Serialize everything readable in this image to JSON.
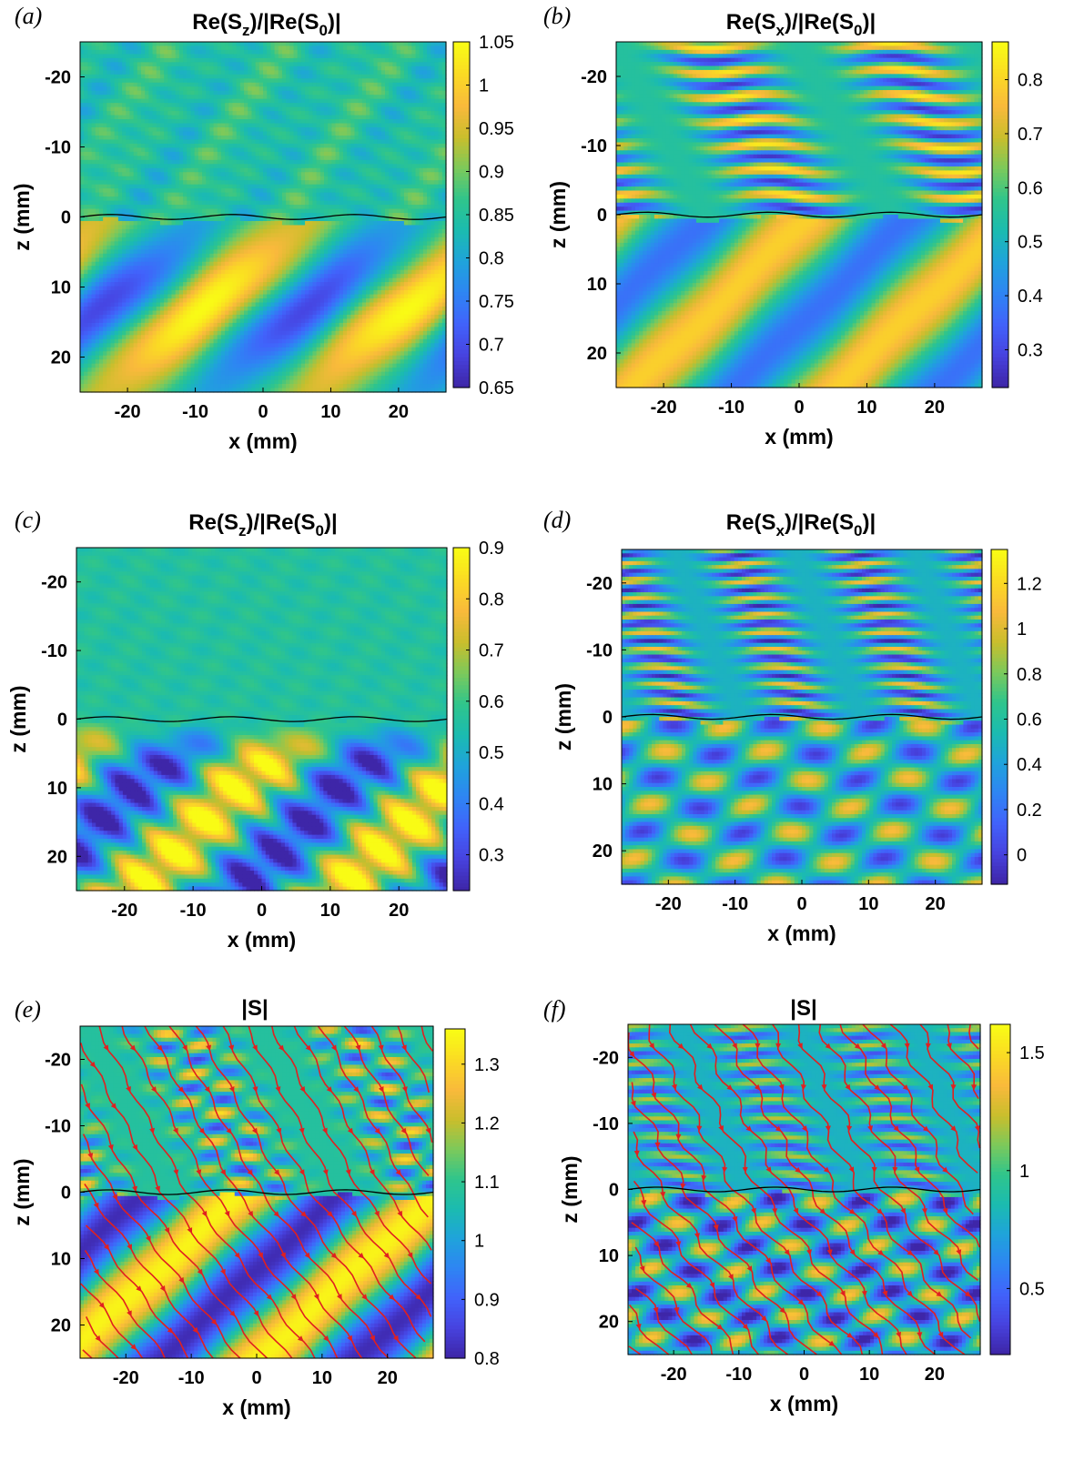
{
  "colormap": [
    "#3e26a8",
    "#4743e0",
    "#4163fb",
    "#2e85f3",
    "#1fa3db",
    "#1bbbb0",
    "#2fc58c",
    "#7cc95b",
    "#c9be2c",
    "#f9b93c",
    "#fada24",
    "#f9fb15"
  ],
  "streamline_color": "#e02020",
  "interface_color": "#000000",
  "chart_data": [
    {
      "panel": "(a)",
      "type": "heatmap",
      "title": "Re(S",
      "title_sub": "z",
      "title_tail": ")/|Re(S",
      "title_sub2": "0",
      "title_end": ")|",
      "xlabel": "x (mm)",
      "ylabel": "z (mm)",
      "xlim": [
        -27,
        27
      ],
      "ylim": [
        -25,
        25
      ],
      "xticks": [
        -20,
        -10,
        0,
        10,
        20
      ],
      "xtick_labels": [
        "-20",
        "-10",
        "0",
        "10",
        "20"
      ],
      "yticks": [
        -20,
        -10,
        0,
        10,
        20
      ],
      "ytick_labels": [
        "-20",
        "-10",
        "0",
        "10",
        "20"
      ],
      "clim": [
        0.65,
        1.05
      ],
      "cbar_ticks": [
        0.65,
        0.7,
        0.75,
        0.8,
        0.85,
        0.9,
        0.95,
        1,
        1.05
      ],
      "cbar_tick_labels": [
        "0.65",
        "0.7",
        "0.75",
        "0.8",
        "0.85",
        "0.9",
        "0.95",
        "1",
        "1.05"
      ]
    },
    {
      "panel": "(b)",
      "type": "heatmap",
      "title": "Re(S",
      "title_sub": "x",
      "title_tail": ")/|Re(S",
      "title_sub2": "0",
      "title_end": ")|",
      "xlabel": "x (mm)",
      "ylabel": "z (mm)",
      "xlim": [
        -27,
        27
      ],
      "ylim": [
        -25,
        25
      ],
      "xticks": [
        -20,
        -10,
        0,
        10,
        20
      ],
      "xtick_labels": [
        "-20",
        "-10",
        "0",
        "10",
        "20"
      ],
      "yticks": [
        -20,
        -10,
        0,
        10,
        20
      ],
      "ytick_labels": [
        "-20",
        "-10",
        "0",
        "10",
        "20"
      ],
      "clim": [
        0.23,
        0.87
      ],
      "cbar_ticks": [
        0.3,
        0.4,
        0.5,
        0.6,
        0.7,
        0.8
      ],
      "cbar_tick_labels": [
        "0.3",
        "0.4",
        "0.5",
        "0.6",
        "0.7",
        "0.8"
      ]
    },
    {
      "panel": "(c)",
      "type": "heatmap",
      "title": "Re(S",
      "title_sub": "z",
      "title_tail": ")/|Re(S",
      "title_sub2": "0",
      "title_end": ")|",
      "xlabel": "x (mm)",
      "ylabel": "z (mm)",
      "xlim": [
        -27,
        27
      ],
      "ylim": [
        -25,
        25
      ],
      "xticks": [
        -20,
        -10,
        0,
        10,
        20
      ],
      "xtick_labels": [
        "-20",
        "-10",
        "0",
        "10",
        "20"
      ],
      "yticks": [
        -20,
        -10,
        0,
        10,
        20
      ],
      "ytick_labels": [
        "-20",
        "-10",
        "0",
        "10",
        "20"
      ],
      "clim": [
        0.23,
        0.9
      ],
      "cbar_ticks": [
        0.3,
        0.4,
        0.5,
        0.6,
        0.7,
        0.8,
        0.9
      ],
      "cbar_tick_labels": [
        "0.3",
        "0.4",
        "0.5",
        "0.6",
        "0.7",
        "0.8",
        "0.9"
      ]
    },
    {
      "panel": "(d)",
      "type": "heatmap",
      "title": "Re(S",
      "title_sub": "x",
      "title_tail": ")/|Re(S",
      "title_sub2": "0",
      "title_end": ")|",
      "xlabel": "x (mm)",
      "ylabel": "z (mm)",
      "xlim": [
        -27,
        27
      ],
      "ylim": [
        -25,
        25
      ],
      "xticks": [
        -20,
        -10,
        0,
        10,
        20
      ],
      "xtick_labels": [
        "-20",
        "-10",
        "0",
        "10",
        "20"
      ],
      "yticks": [
        -20,
        -10,
        0,
        10,
        20
      ],
      "ytick_labels": [
        "-20",
        "-10",
        "0",
        "10",
        "20"
      ],
      "clim": [
        -0.13,
        1.35
      ],
      "cbar_ticks": [
        0,
        0.2,
        0.4,
        0.6,
        0.8,
        1,
        1.2
      ],
      "cbar_tick_labels": [
        "0",
        "0.2",
        "0.4",
        "0.6",
        "0.8",
        "1",
        "1.2"
      ]
    },
    {
      "panel": "(e)",
      "type": "heatmap",
      "title": "|S|",
      "title_sub": "",
      "title_tail": "",
      "title_sub2": "",
      "title_end": "",
      "xlabel": "x (mm)",
      "ylabel": "z (mm)",
      "xlim": [
        -27,
        27
      ],
      "ylim": [
        -25,
        25
      ],
      "xticks": [
        -20,
        -10,
        0,
        10,
        20
      ],
      "xtick_labels": [
        "-20",
        "-10",
        "0",
        "10",
        "20"
      ],
      "yticks": [
        -20,
        -10,
        0,
        10,
        20
      ],
      "ytick_labels": [
        "-20",
        "-10",
        "0",
        "10",
        "20"
      ],
      "clim": [
        0.8,
        1.36
      ],
      "cbar_ticks": [
        0.8,
        0.9,
        1,
        1.1,
        1.2,
        1.3
      ],
      "cbar_tick_labels": [
        "0.8",
        "0.9",
        "1",
        "1.1",
        "1.2",
        "1.3"
      ],
      "streamlines": true
    },
    {
      "panel": "(f)",
      "type": "heatmap",
      "title": "|S|",
      "title_sub": "",
      "title_tail": "",
      "title_sub2": "",
      "title_end": "",
      "xlabel": "x (mm)",
      "ylabel": "z (mm)",
      "xlim": [
        -27,
        27
      ],
      "ylim": [
        -25,
        25
      ],
      "xticks": [
        -20,
        -10,
        0,
        10,
        20
      ],
      "xtick_labels": [
        "-20",
        "-10",
        "0",
        "10",
        "20"
      ],
      "yticks": [
        -20,
        -10,
        0,
        10,
        20
      ],
      "ytick_labels": [
        "-20",
        "-10",
        "0",
        "10",
        "20"
      ],
      "clim": [
        0.22,
        1.62
      ],
      "cbar_ticks": [
        0.5,
        1,
        1.5
      ],
      "cbar_tick_labels": [
        "0.5",
        "1",
        "1.5"
      ],
      "streamlines": true
    }
  ]
}
